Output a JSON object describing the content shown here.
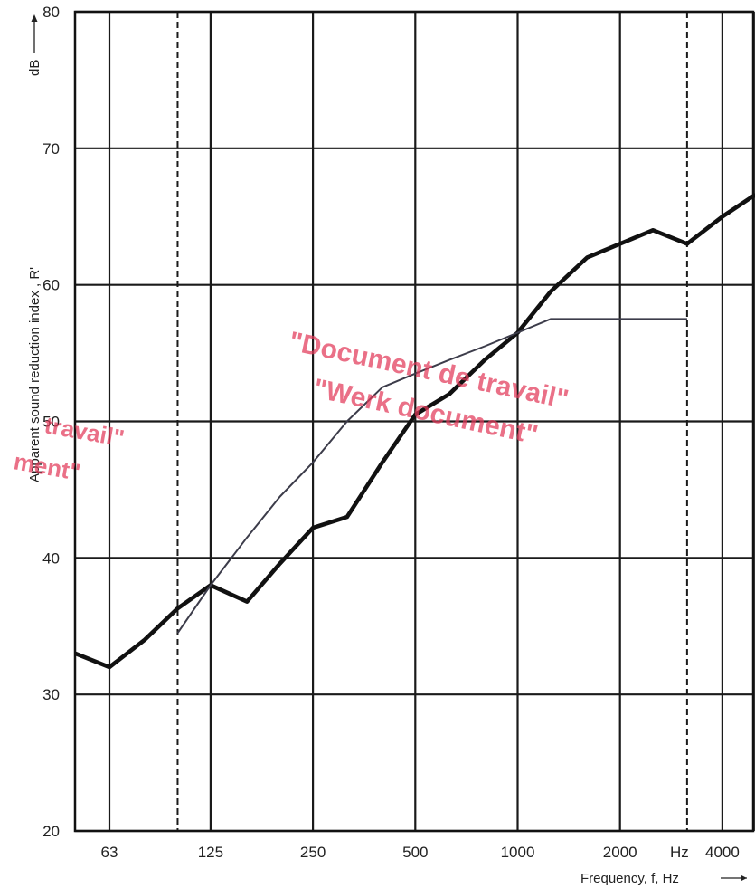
{
  "chart_data": {
    "type": "line",
    "xscale": "log2",
    "xlabel": "Frequency, f, Hz",
    "ylabel": "Apparent sound reduction index ,  R'",
    "y_unit": "dB",
    "x_unit_label": "Hz",
    "ylim": [
      20,
      80
    ],
    "y_ticks": [
      20,
      30,
      40,
      50,
      60,
      70,
      80
    ],
    "xlim": [
      50,
      5000
    ],
    "x_ticks": [
      {
        "value": 63,
        "label": "63"
      },
      {
        "value": 125,
        "label": "125"
      },
      {
        "value": 250,
        "label": "250"
      },
      {
        "value": 500,
        "label": "500"
      },
      {
        "value": 1000,
        "label": "1000"
      },
      {
        "value": 2000,
        "label": "2000"
      },
      {
        "value": 4000,
        "label": "4000"
      }
    ],
    "x_gridlines": [
      63,
      125,
      250,
      500,
      1000,
      2000,
      4000
    ],
    "x_dashed_lines": [
      100,
      3150
    ],
    "grid": true,
    "series": [
      {
        "style": "thick",
        "color": "#111111",
        "x": [
          50,
          63,
          80,
          100,
          125,
          160,
          200,
          250,
          315,
          400,
          500,
          630,
          800,
          1000,
          1250,
          1600,
          2000,
          2500,
          3150,
          4000,
          5000
        ],
        "y": [
          33,
          32,
          34,
          36.3,
          38,
          36.8,
          39.6,
          42.2,
          43,
          47,
          50.5,
          52,
          54.5,
          56.5,
          59.5,
          62,
          63,
          64,
          63,
          65,
          66.6
        ]
      },
      {
        "style": "thin",
        "color": "#3c3c4a",
        "x": [
          100,
          125,
          160,
          200,
          250,
          315,
          400,
          500,
          630,
          800,
          1000,
          1250,
          1600,
          2000,
          2500,
          3150
        ],
        "y": [
          34.5,
          38,
          41.5,
          44.5,
          47,
          50,
          52.5,
          53.5,
          54.5,
          55.5,
          56.5,
          57.5,
          57.5,
          57.5,
          57.5,
          57.5
        ]
      }
    ]
  },
  "stamp": {
    "color": "#e23a5a",
    "line1": "\"Document de travail\"",
    "line2": "\"Werk document\"",
    "left_line1": "travail\"",
    "left_line2": "ment\""
  }
}
